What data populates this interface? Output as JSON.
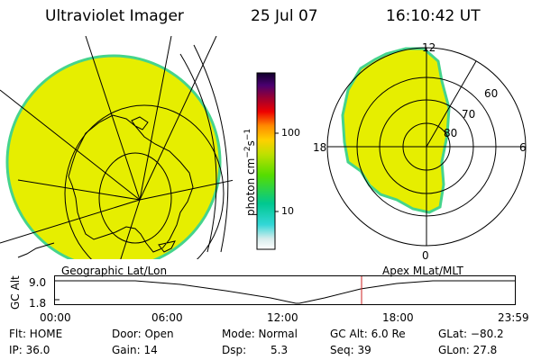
{
  "header": {
    "instrument": "Ultraviolet Imager",
    "date": "25 Jul 07",
    "time": "16:10:42 UT"
  },
  "colorbar": {
    "label": "photon cm",
    "label_sup1": "−2",
    "label_mid": "s",
    "label_sup2": "−1",
    "ticks": [
      "100",
      "10"
    ],
    "scale": "log",
    "colors": [
      "#ffffff",
      "#d6ecec",
      "#33d7d7",
      "#00c890",
      "#55dd00",
      "#c0e000",
      "#ffd000",
      "#ff8a00",
      "#ee0000",
      "#990033",
      "#4a0070",
      "#10002a"
    ]
  },
  "polar_plot": {
    "mlt_labels": {
      "top": "12",
      "left": "18",
      "right": "6",
      "bottom": "0"
    },
    "lat_labels": [
      "60",
      "70",
      "80"
    ],
    "fill_color": "#e6ee00",
    "edge_color": "#45d48c"
  },
  "geo_plot": {
    "fill_color": "#e6ee00",
    "edge_color": "#45d48c"
  },
  "timeline": {
    "left_title": "Geographic Lat/Lon",
    "right_title": "Apex MLat/MLT",
    "axis_label": "GC Alt",
    "y_ticks": [
      "9.0",
      "1.8"
    ],
    "x_ticks": [
      "00:00",
      "06:00",
      "12:00",
      "18:00",
      "23:59"
    ],
    "marker_time": "16:10",
    "marker_color": "#cc2222"
  },
  "status": {
    "flt": "Flt: HOME",
    "ip": "IP: 36.0",
    "door": "Door: Open",
    "gain": "Gain: 14",
    "mode": "Mode: Normal",
    "dsp_label": "Dsp:",
    "dsp_value": "5.3",
    "gc_alt": "GC Alt: 6.0 Re",
    "seq": "Seq: 39",
    "glat": "GLat: −80.2",
    "glon": "GLon: 27.8"
  }
}
